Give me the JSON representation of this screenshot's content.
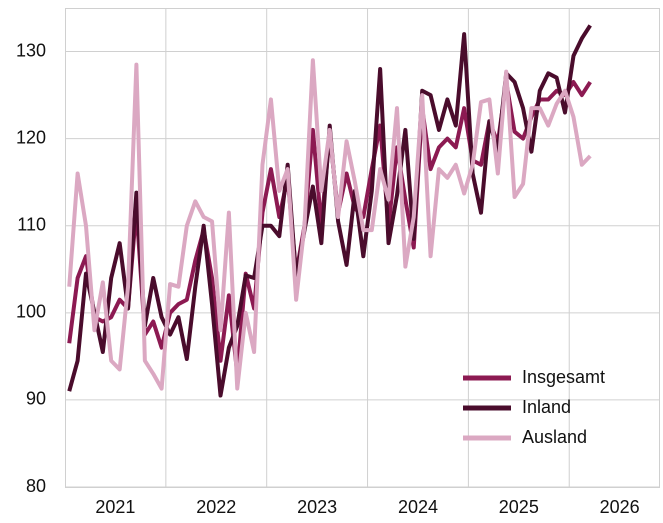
{
  "chart_data": {
    "type": "line",
    "x": [
      2021.042,
      2021.125,
      2021.208,
      2021.292,
      2021.375,
      2021.458,
      2021.542,
      2021.625,
      2021.708,
      2021.792,
      2021.875,
      2021.958,
      2022.042,
      2022.125,
      2022.208,
      2022.292,
      2022.375,
      2022.458,
      2022.542,
      2022.625,
      2022.708,
      2022.792,
      2022.875,
      2022.958,
      2023.042,
      2023.125,
      2023.208,
      2023.292,
      2023.375,
      2023.458,
      2023.542,
      2023.625,
      2023.708,
      2023.792,
      2023.875,
      2023.958,
      2024.042,
      2024.125,
      2024.208,
      2024.292,
      2024.375,
      2024.458,
      2024.542,
      2024.625,
      2024.708,
      2024.792,
      2024.875,
      2024.958,
      2025.042,
      2025.125,
      2025.208,
      2025.292,
      2025.375,
      2025.458,
      2025.542,
      2025.625,
      2025.708,
      2025.792,
      2025.875,
      2025.958,
      2026.042,
      2026.125,
      2026.208
    ],
    "series": [
      {
        "name": "Insgesamt",
        "color": "#8c1a52",
        "values": [
          96.5,
          104,
          106.5,
          99.5,
          99,
          99.5,
          101.5,
          100.5,
          112,
          97.5,
          99,
          96,
          100,
          101,
          101.5,
          106,
          109.5,
          104,
          94.5,
          102,
          93,
          104.5,
          100.5,
          111.5,
          116.5,
          111,
          115.5,
          104.5,
          110,
          121,
          110,
          120.5,
          111.5,
          116,
          112,
          111,
          116.5,
          121.5,
          110,
          119,
          113,
          107.5,
          123.5,
          116.5,
          119,
          120,
          119,
          123.5,
          117.5,
          117,
          122,
          119.5,
          126.5,
          120.8,
          120,
          122.5,
          124.5,
          124.5,
          125.5,
          125,
          126.5,
          125,
          126.5
        ]
      },
      {
        "name": "Inland",
        "color": "#4a0c2c",
        "values": [
          91,
          94.5,
          104.5,
          100,
          95.5,
          104,
          108,
          100.5,
          113.8,
          98.5,
          104,
          99.5,
          97.5,
          99.5,
          94.7,
          103,
          110,
          101,
          90.5,
          96,
          98.5,
          104.3,
          104,
          110,
          110,
          108.8,
          117,
          104,
          109.5,
          114.5,
          108,
          121.5,
          110.5,
          105.5,
          114,
          106.5,
          114,
          128,
          108,
          113.5,
          121,
          108.5,
          125.5,
          125,
          121,
          124.5,
          121.5,
          132,
          116,
          111.5,
          122,
          118.5,
          127.5,
          126.5,
          123.5,
          118.5,
          125.5,
          127.5,
          127,
          123,
          129.5,
          131.5,
          133
        ]
      },
      {
        "name": "Ausland",
        "color": "#dba8c2",
        "values": [
          103,
          116,
          110,
          98,
          103.5,
          94.5,
          93.5,
          103,
          128.5,
          94.5,
          93,
          91.3,
          103.3,
          103,
          110,
          112.8,
          111,
          110.5,
          98,
          111.5,
          91.3,
          100,
          95.5,
          117,
          124.5,
          114,
          116.5,
          101.5,
          110,
          129,
          114,
          121,
          111,
          119.7,
          115,
          109.5,
          109.5,
          116.5,
          113,
          123.5,
          105.3,
          111,
          125,
          106.5,
          116.5,
          115.5,
          117,
          113.7,
          117,
          124.2,
          124.5,
          116,
          127.7,
          113.3,
          114.8,
          123.5,
          123.5,
          121.5,
          124,
          125.5,
          122.5,
          117,
          118
        ]
      }
    ],
    "xlim": [
      2021,
      2026.9
    ],
    "xticks": [
      {
        "value": 2021.5,
        "label": "2021"
      },
      {
        "value": 2022.5,
        "label": "2022"
      },
      {
        "value": 2023.5,
        "label": "2023"
      },
      {
        "value": 2024.5,
        "label": "2024"
      },
      {
        "value": 2025.5,
        "label": "2025"
      },
      {
        "value": 2026.5,
        "label": "2026"
      }
    ],
    "xgrid": [
      2022,
      2023,
      2024,
      2025,
      2026
    ],
    "ylim": [
      80,
      135
    ],
    "yticks": [
      80,
      90,
      100,
      110,
      120,
      130
    ],
    "grid": true,
    "legend": "lower-right"
  }
}
